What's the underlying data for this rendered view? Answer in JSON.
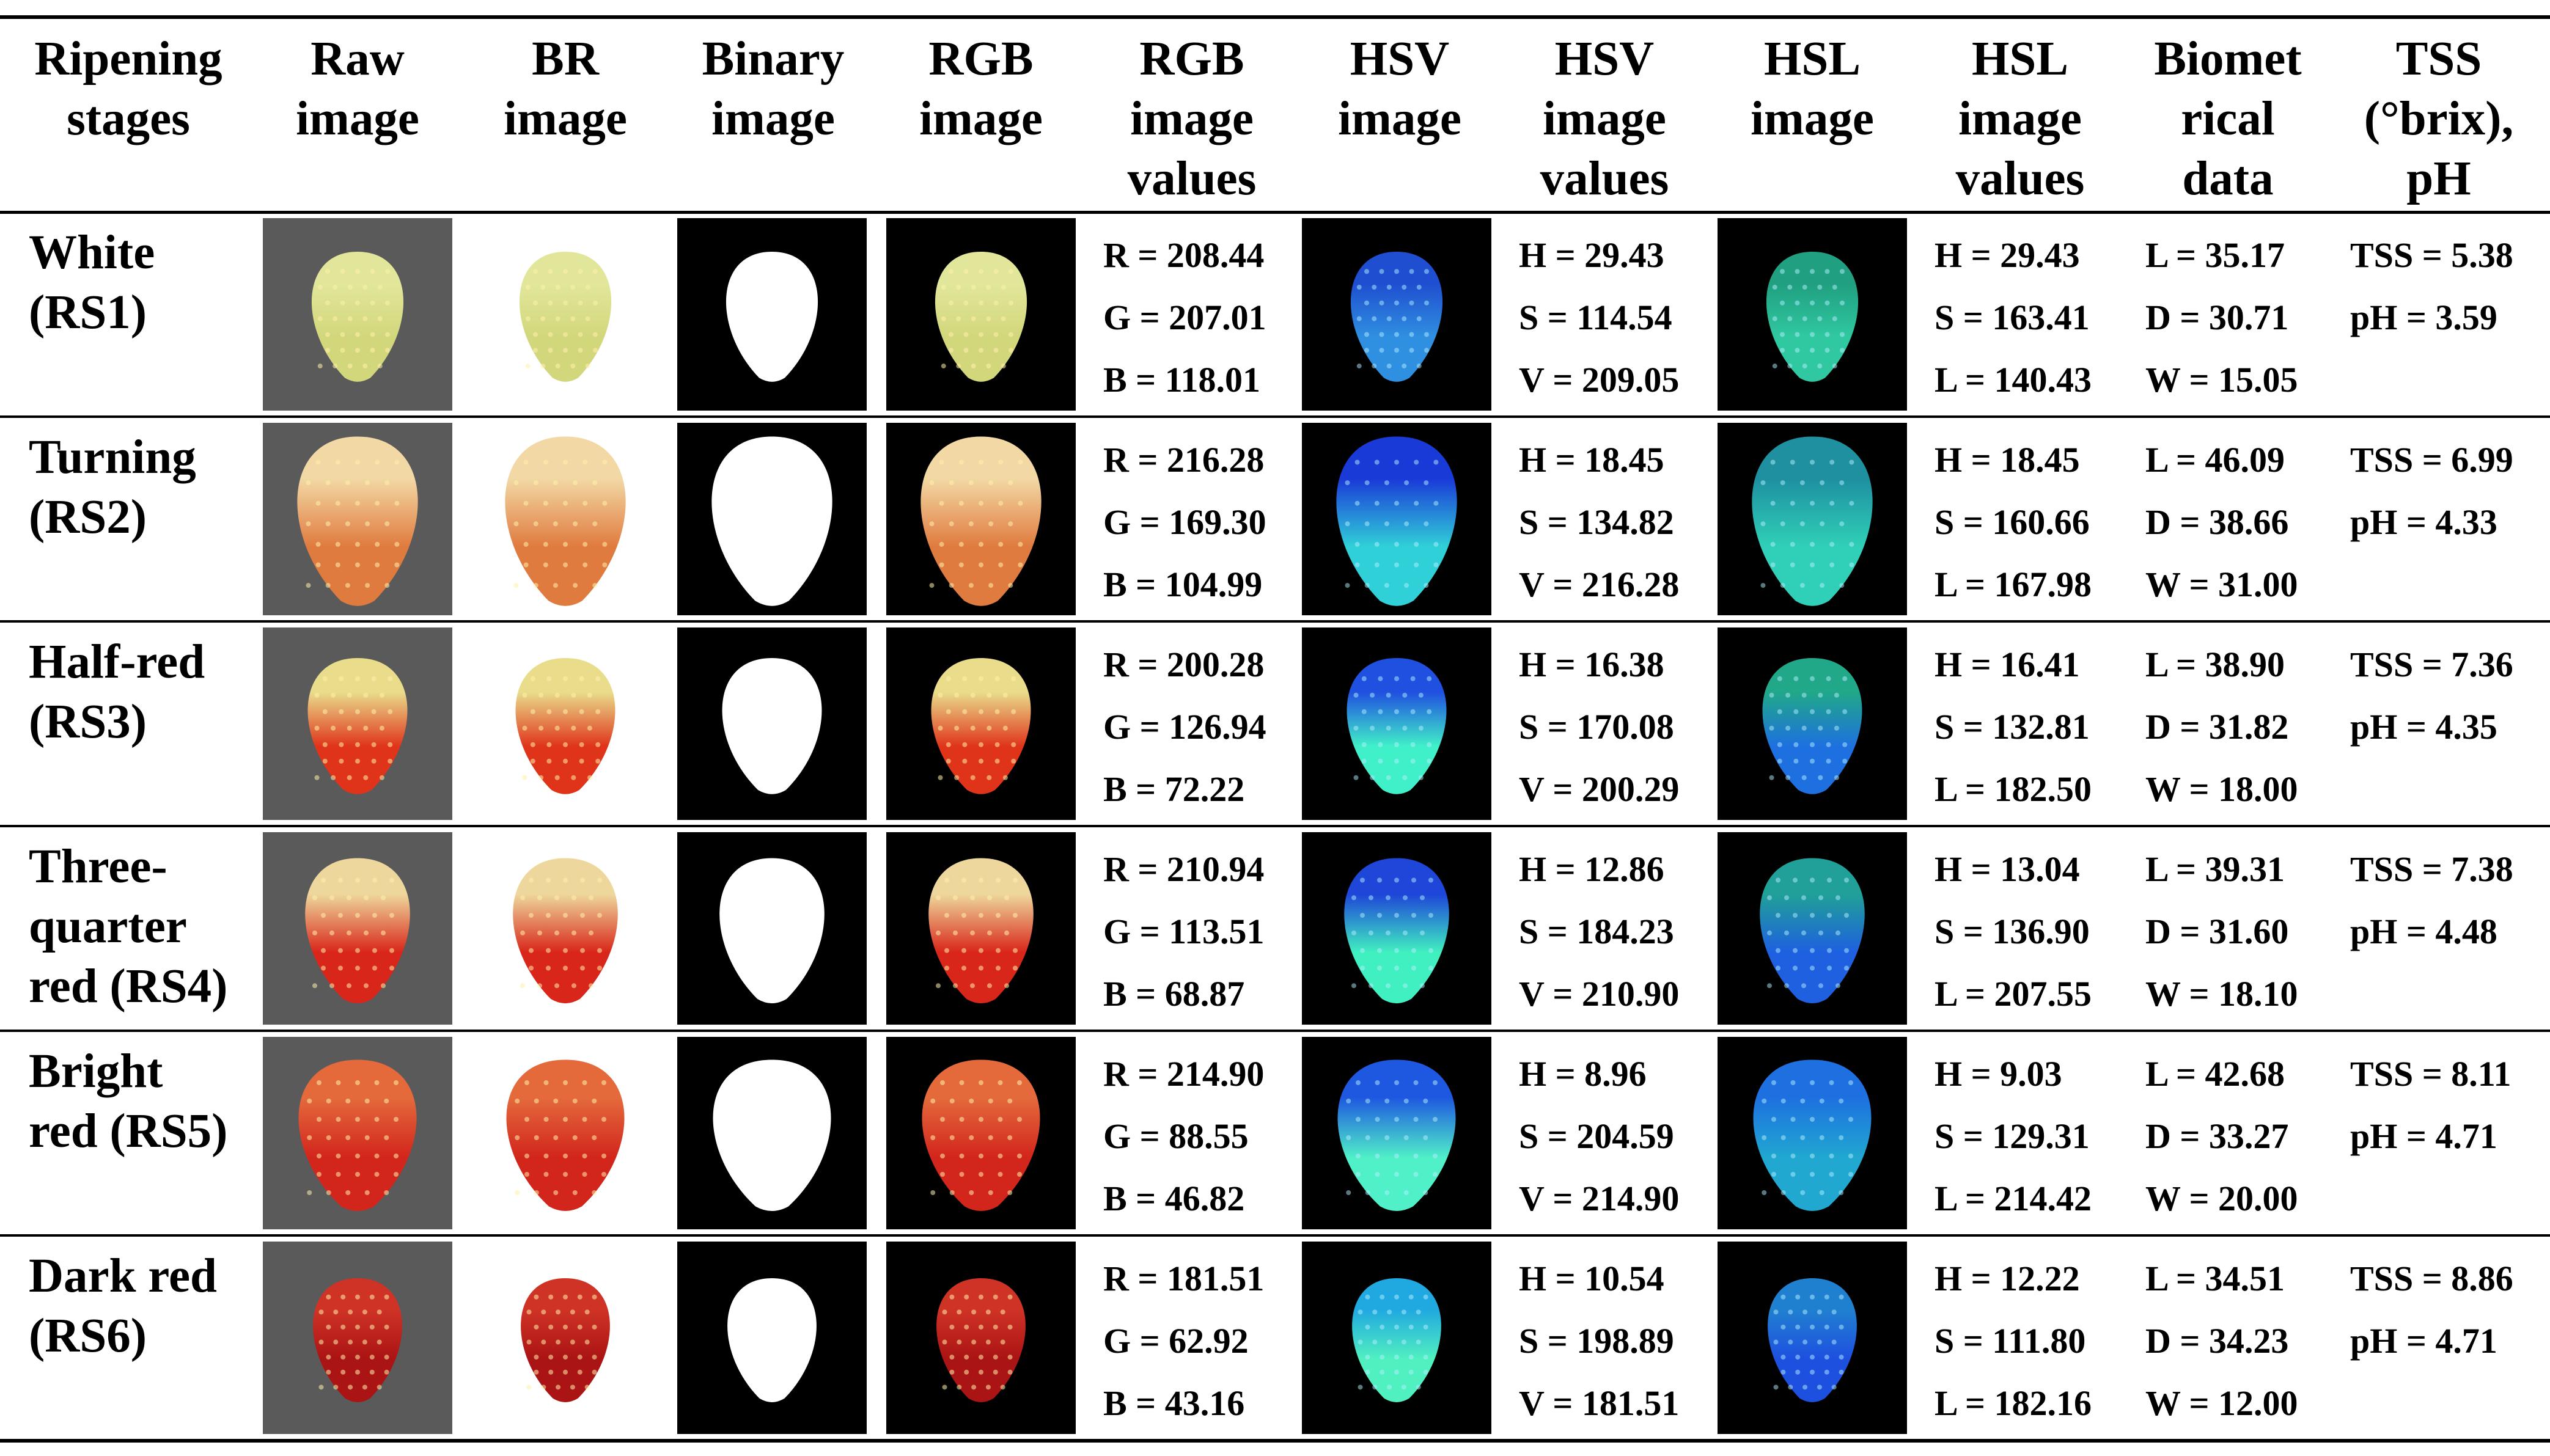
{
  "headers": [
    "Ripening\nstages",
    "Raw\nimage",
    "BR\nimage",
    "Binary\nimage",
    "RGB\nimage",
    "RGB\nimage\nvalues",
    "HSV\nimage",
    "HSV\nimage\nvalues",
    "HSL\nimage",
    "HSL\nimage\nvalues",
    "Biomet\nrical\ndata",
    "TSS\n(°brix),\npH"
  ],
  "rows": [
    {
      "stage": "White\n(RS1)",
      "rgb": [
        "R = 208.44",
        "G = 207.01",
        "B = 118.01"
      ],
      "hsv": [
        "H = 29.43",
        "S = 114.54",
        "V = 209.05"
      ],
      "hsl": [
        "H = 29.43",
        "S = 163.41",
        "L = 140.43"
      ],
      "bio": [
        "L = 35.17",
        "D = 30.71",
        "W = 15.05"
      ],
      "tss": [
        "TSS = 5.38",
        "pH = 3.59"
      ]
    },
    {
      "stage": "Turning\n(RS2)",
      "rgb": [
        "R = 216.28",
        "G = 169.30",
        "B = 104.99"
      ],
      "hsv": [
        "H = 18.45",
        "S = 134.82",
        "V = 216.28"
      ],
      "hsl": [
        "H = 18.45",
        "S = 160.66",
        "L = 167.98"
      ],
      "bio": [
        "L = 46.09",
        "D = 38.66",
        "W = 31.00"
      ],
      "tss": [
        "TSS = 6.99",
        "pH = 4.33"
      ]
    },
    {
      "stage": "Half-red\n(RS3)",
      "rgb": [
        "R = 200.28",
        "G = 126.94",
        "B = 72.22"
      ],
      "hsv": [
        "H = 16.38",
        "S = 170.08",
        "V = 200.29"
      ],
      "hsl": [
        "H = 16.41",
        "S = 132.81",
        "L = 182.50"
      ],
      "bio": [
        "L = 38.90",
        "D = 31.82",
        "W = 18.00"
      ],
      "tss": [
        "TSS = 7.36",
        "pH = 4.35"
      ]
    },
    {
      "stage": "Three-\nquarter\nred (RS4)",
      "rgb": [
        "R = 210.94",
        "G = 113.51",
        "B = 68.87"
      ],
      "hsv": [
        "H = 12.86",
        "S = 184.23",
        "V = 210.90"
      ],
      "hsl": [
        "H = 13.04",
        "S = 136.90",
        "L = 207.55"
      ],
      "bio": [
        "L = 39.31",
        "D = 31.60",
        "W = 18.10"
      ],
      "tss": [
        "TSS = 7.38",
        "pH = 4.48"
      ]
    },
    {
      "stage": "Bright\nred (RS5)",
      "rgb": [
        "R = 214.90",
        "G = 88.55",
        "B = 46.82"
      ],
      "hsv": [
        "H = 8.96",
        "S = 204.59",
        "V = 214.90"
      ],
      "hsl": [
        "H = 9.03",
        "S = 129.31",
        "L = 214.42"
      ],
      "bio": [
        "L = 42.68",
        "D = 33.27",
        "W = 20.00"
      ],
      "tss": [
        "TSS = 8.11",
        "pH = 4.71"
      ]
    },
    {
      "stage": "Dark red\n(RS6)",
      "rgb": [
        "R = 181.51",
        "G = 62.92",
        "B = 43.16"
      ],
      "hsv": [
        "H = 10.54",
        "S = 198.89",
        "V = 181.51"
      ],
      "hsl": [
        "H = 12.22",
        "S = 111.80",
        "L = 182.16"
      ],
      "bio": [
        "L = 34.51",
        "D = 34.23",
        "W = 12.00"
      ],
      "tss": [
        "TSS = 8.86",
        "pH = 4.71"
      ]
    }
  ],
  "colors": {
    "raw_background": "#5a5a5a",
    "black_panel": "#000000",
    "fruit": [
      {
        "top": "#e2e69a",
        "bottom": "#d2d77c"
      },
      {
        "top": "#f2d8a4",
        "bottom": "#e07b3f"
      },
      {
        "top": "#e9dd8c",
        "bottom": "#e0341a"
      },
      {
        "top": "#eed79c",
        "bottom": "#d8261a"
      },
      {
        "top": "#e46a3c",
        "bottom": "#d2251c"
      },
      {
        "top": "#cf3326",
        "bottom": "#ab1414"
      }
    ],
    "hsv_fruit": [
      {
        "top": "#1f4fd0",
        "bottom": "#2f8fe0"
      },
      {
        "top": "#1a3ad8",
        "bottom": "#30d0d8"
      },
      {
        "top": "#2050e0",
        "bottom": "#40f0c8"
      },
      {
        "top": "#1e46d8",
        "bottom": "#40f0c0"
      },
      {
        "top": "#1e58e0",
        "bottom": "#50f0c8"
      },
      {
        "top": "#20a8e0",
        "bottom": "#50f0c0"
      }
    ],
    "hsl_fruit": [
      {
        "top": "#20a080",
        "bottom": "#30c8a0"
      },
      {
        "top": "#1e90a0",
        "bottom": "#30d0b8"
      },
      {
        "top": "#20a888",
        "bottom": "#1e70e0"
      },
      {
        "top": "#20a098",
        "bottom": "#1e60e0"
      },
      {
        "top": "#1e70e0",
        "bottom": "#20a8d0"
      },
      {
        "top": "#2080d0",
        "bottom": "#1e50e0"
      }
    ]
  }
}
